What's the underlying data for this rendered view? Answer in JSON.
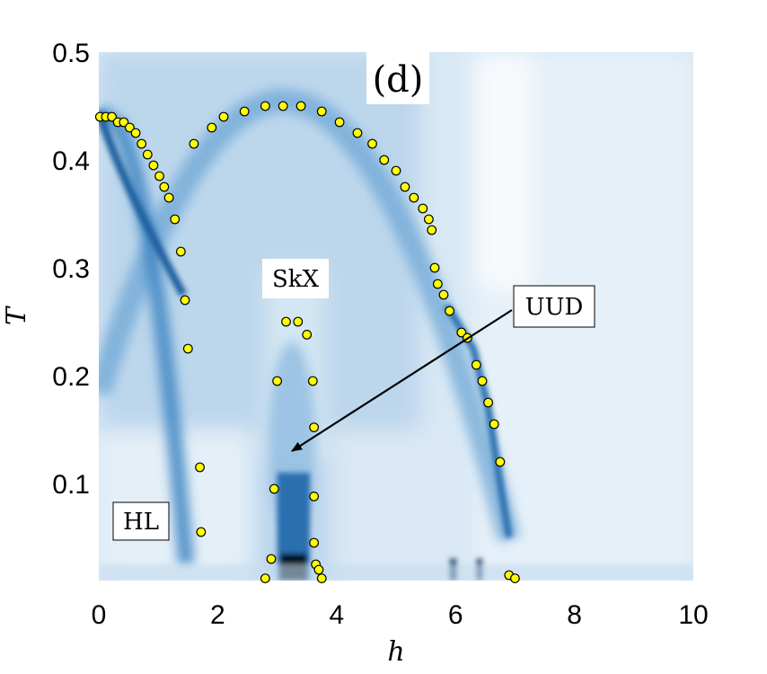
{
  "chart_data": {
    "type": "heatmap",
    "title": "",
    "panel_label": "(d)",
    "xlabel": "h",
    "ylabel": "T",
    "xlim": [
      0,
      10
    ],
    "ylim": [
      0.01,
      0.5
    ],
    "x_ticks": [
      0,
      2,
      4,
      6,
      8,
      10
    ],
    "x_tick_labels": [
      "0",
      "2",
      "4",
      "6",
      "8",
      "10"
    ],
    "y_ticks": [
      0.1,
      0.2,
      0.3,
      0.4,
      0.5
    ],
    "y_tick_labels": [
      "0.1",
      "0.2",
      "0.3",
      "0.4",
      "0.5"
    ],
    "colormap": {
      "low": "#f2f8fc",
      "mid": "#4a90c8",
      "high": "#000000"
    },
    "marker_color": "#ffff00",
    "grid": false,
    "annotations": {
      "hl": {
        "text": "HL",
        "x": 1.15,
        "y": 0.055
      },
      "skx": {
        "text": "SkX",
        "x": 3.3,
        "y": 0.292
      },
      "uud": {
        "text": "UUD",
        "x": 7.25,
        "y": 0.275,
        "arrow_to": [
          3.2,
          0.13
        ]
      }
    },
    "series": [
      {
        "marker": "circle",
        "x": [
          0.02,
          0.12,
          0.22,
          0.32,
          0.42,
          0.52,
          0.62,
          0.72,
          0.82,
          0.92,
          1.02,
          1.1,
          1.18,
          1.28,
          1.38,
          1.45,
          1.6,
          1.9,
          2.1,
          2.45,
          2.8,
          3.1,
          3.4,
          3.75,
          4.05,
          4.35,
          4.6,
          4.8,
          5.0,
          5.15,
          5.3,
          5.45,
          5.55,
          5.6,
          5.65,
          5.7,
          5.8,
          5.9,
          6.1,
          6.2,
          6.35,
          6.45,
          6.55,
          6.65,
          6.75,
          6.9,
          7.0,
          1.5,
          1.7,
          1.72,
          2.8,
          2.9,
          2.95,
          3.0,
          3.15,
          3.35,
          3.5,
          3.6,
          3.62,
          3.62,
          3.62,
          3.65,
          3.7,
          3.75
        ],
        "y": [
          0.44,
          0.44,
          0.44,
          0.435,
          0.435,
          0.43,
          0.425,
          0.415,
          0.405,
          0.395,
          0.385,
          0.375,
          0.365,
          0.345,
          0.315,
          0.27,
          0.415,
          0.43,
          0.44,
          0.445,
          0.45,
          0.45,
          0.45,
          0.445,
          0.435,
          0.425,
          0.415,
          0.4,
          0.39,
          0.375,
          0.365,
          0.355,
          0.345,
          0.335,
          0.3,
          0.285,
          0.275,
          0.26,
          0.24,
          0.235,
          0.21,
          0.195,
          0.175,
          0.155,
          0.12,
          0.015,
          0.012,
          0.225,
          0.115,
          0.055,
          0.012,
          0.03,
          0.095,
          0.195,
          0.25,
          0.25,
          0.238,
          0.195,
          0.152,
          0.088,
          0.045,
          0.025,
          0.02,
          0.012
        ]
      }
    ]
  }
}
